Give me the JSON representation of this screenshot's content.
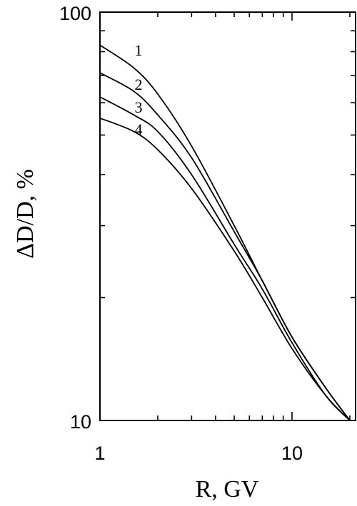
{
  "chart_data": {
    "type": "line",
    "title": "",
    "xlabel": "R, GV",
    "ylabel": "ΔD/D, %",
    "xscale": "log",
    "yscale": "log",
    "xlim": [
      1,
      20
    ],
    "ylim": [
      10,
      100
    ],
    "x_tick_labels": [
      {
        "value": 1,
        "label": "1"
      },
      {
        "value": 10,
        "label": "10"
      }
    ],
    "y_tick_labels": [
      {
        "value": 10,
        "label": "10"
      },
      {
        "value": 100,
        "label": "100"
      }
    ],
    "grid": false,
    "series": [
      {
        "name": "1",
        "x": [
          1,
          1.5,
          2,
          3,
          5,
          7,
          10,
          15,
          20
        ],
        "y": [
          83,
          73,
          63,
          47,
          30,
          22,
          16,
          12,
          10
        ]
      },
      {
        "name": "2",
        "x": [
          1,
          1.5,
          2,
          3,
          5,
          7,
          10,
          15,
          20
        ],
        "y": [
          71,
          64,
          56,
          44,
          29,
          22,
          16,
          12,
          10
        ]
      },
      {
        "name": "3",
        "x": [
          1,
          1.5,
          2,
          3,
          5,
          7,
          10,
          15,
          20
        ],
        "y": [
          62,
          56,
          51,
          40,
          27,
          21,
          15.5,
          11.5,
          10
        ]
      },
      {
        "name": "4",
        "x": [
          1,
          1.5,
          2,
          3,
          5,
          7,
          10,
          15,
          20
        ],
        "y": [
          55,
          51,
          46,
          37,
          26,
          20,
          15,
          11.5,
          10
        ]
      }
    ]
  }
}
